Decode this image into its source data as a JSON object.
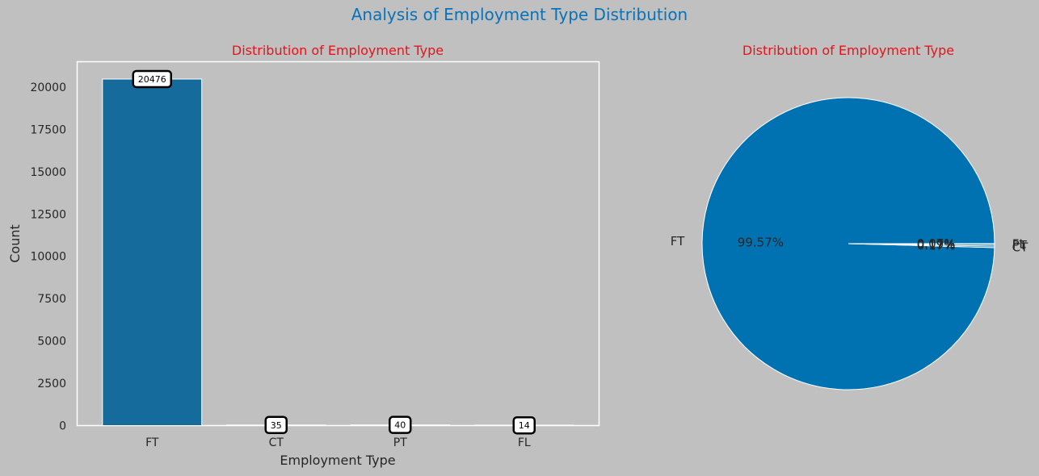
{
  "figure": {
    "suptitle": "Analysis of Employment Type Distribution",
    "suptitle_color": "#0a72b8",
    "background": "#c0c0c0"
  },
  "chart_data": [
    {
      "type": "bar",
      "title": "Distribution of Employment Type",
      "title_color": "#e8131a",
      "xlabel": "Employment Type",
      "ylabel": "Count",
      "categories": [
        "FT",
        "CT",
        "PT",
        "FL"
      ],
      "values": [
        20476,
        35,
        40,
        14
      ],
      "data_labels": [
        "20476",
        "35",
        "40",
        "14"
      ],
      "ylim": [
        0,
        21500
      ],
      "yticks": [
        0,
        2500,
        5000,
        7500,
        10000,
        12500,
        15000,
        17500,
        20000
      ],
      "ytick_labels": [
        "0",
        "2500",
        "5000",
        "7500",
        "10000",
        "12500",
        "15000",
        "17500",
        "20000"
      ],
      "bar_color": "#156b9c",
      "grid": false
    },
    {
      "type": "pie",
      "title": "Distribution of Employment Type",
      "title_color": "#e8131a",
      "labels": [
        "FT",
        "CT",
        "PT",
        "FL"
      ],
      "values": [
        20476,
        35,
        40,
        14
      ],
      "percent_labels": [
        "99.57%",
        "0.17%",
        "0.19%",
        "0.07%"
      ],
      "slice_color": "#0072b2",
      "edge_color": "#ffffff"
    }
  ]
}
